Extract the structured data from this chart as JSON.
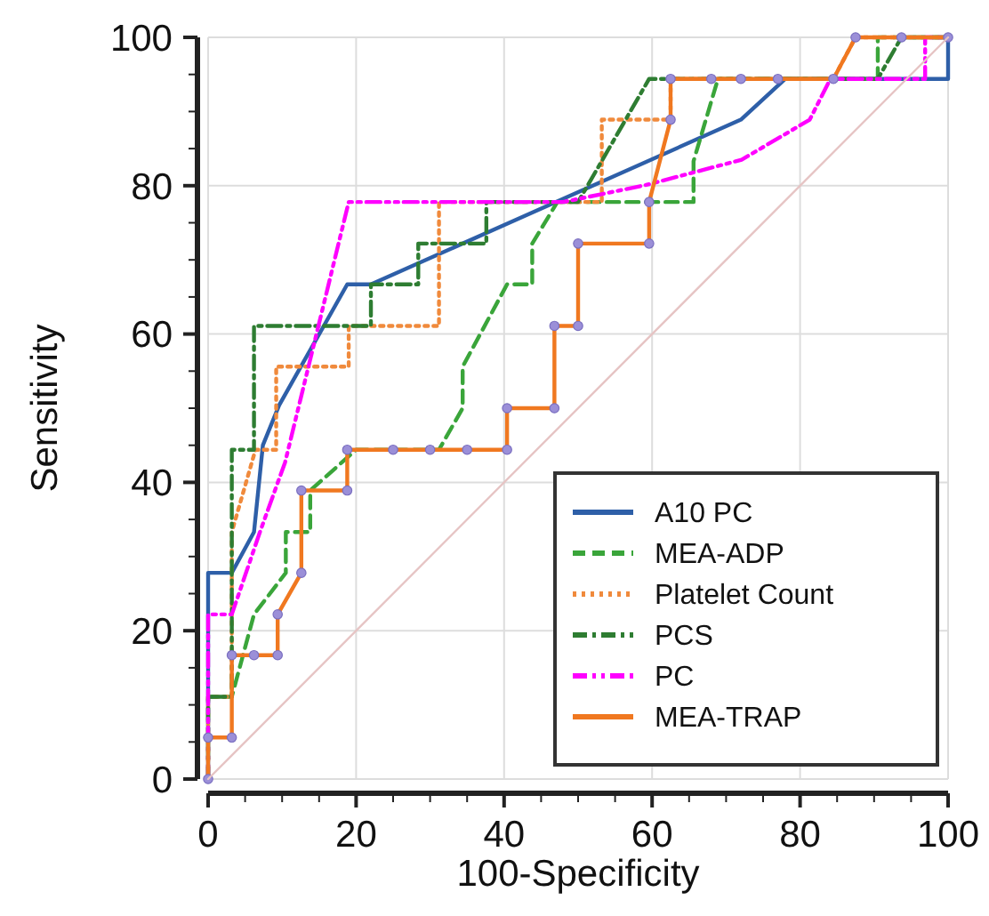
{
  "chart_data": {
    "type": "line",
    "xlabel": "100-Specificity",
    "ylabel": "Sensitivity",
    "xlim": [
      0,
      100
    ],
    "ylim": [
      0,
      100
    ],
    "xticks": [
      0,
      {
        "value": 5,
        "label": null
      },
      {
        "value": 10,
        "label": null
      },
      {
        "value": 15,
        "label": null
      },
      20,
      {
        "value": 25,
        "label": null
      },
      {
        "value": 30,
        "label": null
      },
      {
        "value": 35,
        "label": null
      },
      40,
      {
        "value": 45,
        "label": null
      },
      {
        "value": 50,
        "label": null
      },
      {
        "value": 55,
        "label": null
      },
      60,
      {
        "value": 65,
        "label": null
      },
      {
        "value": 70,
        "label": null
      },
      {
        "value": 75,
        "label": null
      },
      80,
      {
        "value": 85,
        "label": null
      },
      {
        "value": 90,
        "label": null
      },
      {
        "value": 95,
        "label": null
      },
      100
    ],
    "yticks": [
      0,
      {
        "value": 5,
        "label": null
      },
      {
        "value": 10,
        "label": null
      },
      {
        "value": 15,
        "label": null
      },
      20,
      {
        "value": 25,
        "label": null
      },
      {
        "value": 30,
        "label": null
      },
      {
        "value": 35,
        "label": null
      },
      40,
      {
        "value": 45,
        "label": null
      },
      {
        "value": 50,
        "label": null
      },
      {
        "value": 55,
        "label": null
      },
      60,
      {
        "value": 65,
        "label": null
      },
      {
        "value": 70,
        "label": null
      },
      {
        "value": 75,
        "label": null
      },
      80,
      {
        "value": 85,
        "label": null
      },
      {
        "value": 90,
        "label": null
      },
      {
        "value": 95,
        "label": null
      },
      100
    ],
    "grid": true,
    "legend": "bottom right",
    "series": [
      {
        "name": "A10 PC",
        "color": "#2e5fa8",
        "line_style": "solid",
        "x": [
          0,
          0,
          3.2,
          6.2,
          7.4,
          9.6,
          18.8,
          22,
          72,
          78,
          100,
          100
        ],
        "values": [
          0,
          27.8,
          27.8,
          33.3,
          45,
          50.4,
          66.7,
          66.7,
          88.9,
          94.4,
          94.4,
          100
        ]
      },
      {
        "name": "MEA-ADP",
        "color": "#3aa53a",
        "line_style": "dashed",
        "x": [
          0,
          0,
          3.2,
          6.2,
          10.5,
          10.5,
          13.8,
          13.8,
          20,
          31.2,
          34.4,
          34.4,
          40.4,
          43.8,
          43.8,
          47.2,
          50,
          65.6,
          65.6,
          68.9,
          90.5,
          90.5,
          100
        ],
        "values": [
          0,
          11.1,
          11.1,
          22.2,
          27.8,
          33.3,
          33.3,
          38.9,
          44.4,
          44.4,
          50,
          55.6,
          66.7,
          66.7,
          72.2,
          77.8,
          77.8,
          77.8,
          83.3,
          94.4,
          94.4,
          100,
          100
        ]
      },
      {
        "name": "Platelet Count",
        "color": "#f08a3c",
        "line_style": "dotted",
        "x": [
          0,
          0,
          3.2,
          3.2,
          6.4,
          9.2,
          9.2,
          19,
          19,
          31.2,
          31.2,
          53.2,
          53.2,
          62.5,
          62.5,
          84.5,
          87.5,
          100
        ],
        "values": [
          0,
          11.1,
          11.1,
          33.3,
          44.4,
          44.4,
          55.6,
          55.6,
          61.1,
          61.1,
          77.8,
          77.8,
          88.9,
          88.9,
          94.4,
          94.4,
          100,
          100
        ]
      },
      {
        "name": "PCS",
        "color": "#2e7d32",
        "line_style": "dashdot",
        "x": [
          0,
          0,
          3.2,
          3.2,
          6.2,
          6.2,
          22,
          22,
          28.4,
          28.4,
          37.6,
          37.6,
          50,
          59.6,
          90.5,
          93.7,
          100
        ],
        "values": [
          0,
          11.1,
          11.1,
          44.4,
          44.4,
          61.1,
          61.1,
          66.7,
          66.7,
          72.2,
          72.2,
          77.8,
          77.8,
          94.4,
          94.4,
          100,
          100
        ]
      },
      {
        "name": "PC",
        "color": "#ff00ff",
        "line_style": "dashdotdot",
        "x": [
          0,
          0,
          3.2,
          7,
          10.4,
          19,
          48,
          59.2,
          72.1,
          81.3,
          84.1,
          96.9,
          96.9,
          100
        ],
        "values": [
          0,
          22.2,
          22.2,
          33.3,
          42.7,
          77.8,
          77.8,
          80.1,
          83.5,
          88.9,
          94.4,
          94.4,
          100,
          100
        ]
      },
      {
        "name": "MEA-TRAP",
        "color": "#f07820",
        "line_style": "solid",
        "marker": "circle",
        "x": [
          0,
          0,
          3.2,
          3.2,
          6.2,
          9.4,
          9.4,
          12.6,
          12.6,
          18.8,
          18.8,
          25,
          30,
          35,
          40.4,
          40.4,
          46.8,
          46.8,
          50,
          50,
          59.6,
          59.6,
          62.5,
          62.5,
          68,
          72,
          77,
          84.5,
          87.5,
          93.7,
          100
        ],
        "values": [
          0,
          5.6,
          5.6,
          16.7,
          16.7,
          16.7,
          22.2,
          27.8,
          38.9,
          38.9,
          44.4,
          44.4,
          44.4,
          44.4,
          44.4,
          50,
          50,
          61.1,
          61.1,
          72.2,
          72.2,
          77.8,
          88.9,
          94.4,
          94.4,
          94.4,
          94.4,
          94.4,
          100,
          100,
          100
        ]
      },
      {
        "color": "#e6c4c4",
        "line_style": "solid",
        "marker": "none",
        "x": [
          0,
          100
        ],
        "values": [
          0,
          100
        ]
      }
    ]
  }
}
